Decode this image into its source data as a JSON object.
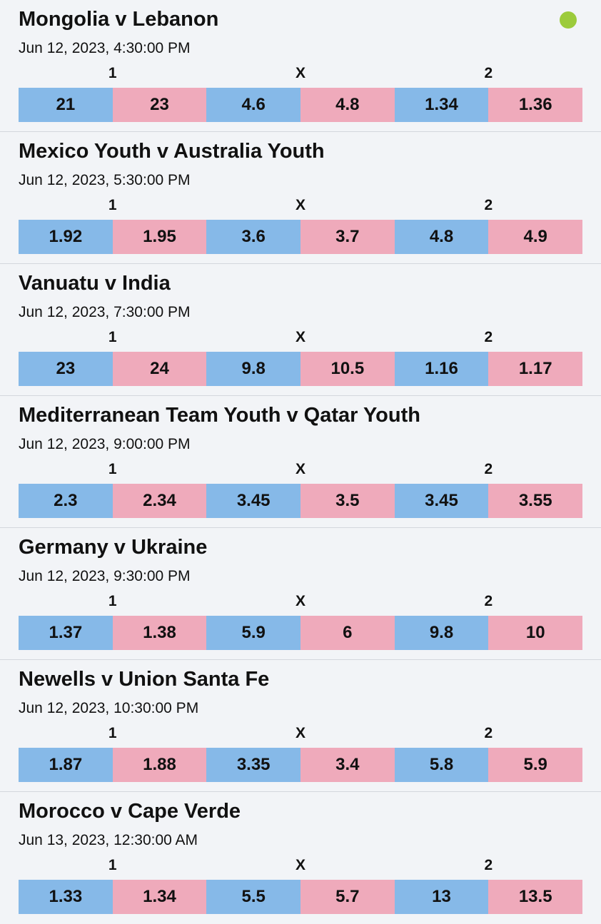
{
  "colors": {
    "page_background": "#f2f4f7",
    "back_odds": "#86b9e8",
    "lay_odds": "#efaabb",
    "live_indicator": "#9ccb3b",
    "divider": "#d3d7dd"
  },
  "market_labels": [
    "1",
    "X",
    "2"
  ],
  "events": [
    {
      "title": "Mongolia v Lebanon",
      "date": "Jun 12, 2023, 4:30:00 PM",
      "live": true,
      "odds": [
        "21",
        "23",
        "4.6",
        "4.8",
        "1.34",
        "1.36"
      ]
    },
    {
      "title": "Mexico Youth v Australia Youth",
      "date": "Jun 12, 2023, 5:30:00 PM",
      "live": false,
      "odds": [
        "1.92",
        "1.95",
        "3.6",
        "3.7",
        "4.8",
        "4.9"
      ]
    },
    {
      "title": "Vanuatu v India",
      "date": "Jun 12, 2023, 7:30:00 PM",
      "live": false,
      "odds": [
        "23",
        "24",
        "9.8",
        "10.5",
        "1.16",
        "1.17"
      ]
    },
    {
      "title": "Mediterranean Team Youth v Qatar Youth",
      "date": "Jun 12, 2023, 9:00:00 PM",
      "live": false,
      "odds": [
        "2.3",
        "2.34",
        "3.45",
        "3.5",
        "3.45",
        "3.55"
      ]
    },
    {
      "title": "Germany v Ukraine",
      "date": "Jun 12, 2023, 9:30:00 PM",
      "live": false,
      "odds": [
        "1.37",
        "1.38",
        "5.9",
        "6",
        "9.8",
        "10"
      ]
    },
    {
      "title": "Newells v Union Santa Fe",
      "date": "Jun 12, 2023, 10:30:00 PM",
      "live": false,
      "odds": [
        "1.87",
        "1.88",
        "3.35",
        "3.4",
        "5.8",
        "5.9"
      ]
    },
    {
      "title": "Morocco v Cape Verde",
      "date": "Jun 13, 2023, 12:30:00 AM",
      "live": false,
      "odds": [
        "1.33",
        "1.34",
        "5.5",
        "5.7",
        "13",
        "13.5"
      ]
    }
  ]
}
